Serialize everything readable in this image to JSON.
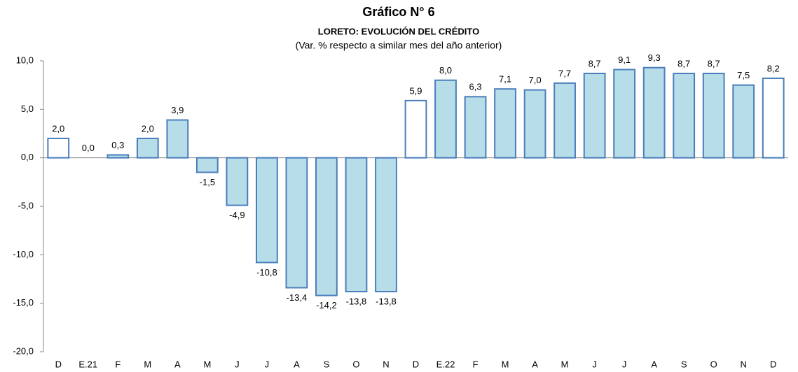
{
  "chart_data": {
    "type": "bar",
    "title": "Gráfico N° 6",
    "subtitle": "LORETO: EVOLUCIÓN DEL CRÉDITO",
    "note": "(Var. % respecto a similar mes del año anterior)",
    "categories": [
      "D",
      "E.21",
      "F",
      "M",
      "A",
      "M",
      "J",
      "J",
      "A",
      "S",
      "O",
      "N",
      "D",
      "E.22",
      "F",
      "M",
      "A",
      "M",
      "J",
      "J",
      "A",
      "S",
      "O",
      "N",
      "D"
    ],
    "values": [
      2.0,
      0.0,
      0.3,
      2.0,
      3.9,
      -1.5,
      -4.9,
      -10.8,
      -13.4,
      -14.2,
      -13.8,
      -13.8,
      5.9,
      8.0,
      6.3,
      7.1,
      7.0,
      7.7,
      8.7,
      9.1,
      9.3,
      8.7,
      8.7,
      7.5,
      8.2
    ],
    "value_labels": [
      "2,0",
      "0,0",
      "0,3",
      "2,0",
      "3,9",
      "-1,5",
      "-4,9",
      "-10,8",
      "-13,4",
      "-14,2",
      "-13,8",
      "-13,8",
      "5,9",
      "8,0",
      "6,3",
      "7,1",
      "7,0",
      "7,7",
      "8,7",
      "9,1",
      "9,3",
      "8,7",
      "8,7",
      "7,5",
      "8,2"
    ],
    "colors": [
      "#ffffff",
      "#b7dde8",
      "#b7dde8",
      "#b7dde8",
      "#b7dde8",
      "#b7dde8",
      "#b7dde8",
      "#b7dde8",
      "#b7dde8",
      "#b7dde8",
      "#b7dde8",
      "#b7dde8",
      "#ffffff",
      "#b7dde8",
      "#b7dde8",
      "#b7dde8",
      "#b7dde8",
      "#b7dde8",
      "#b7dde8",
      "#b7dde8",
      "#b7dde8",
      "#b7dde8",
      "#b7dde8",
      "#b7dde8",
      "#ffffff"
    ],
    "edge_color": "#4a7ebb",
    "ylim": [
      -20,
      10
    ],
    "yticks": [
      {
        "value": -20,
        "label": "-20,0"
      },
      {
        "value": -15,
        "label": "-15,0"
      },
      {
        "value": -10,
        "label": "-10,0"
      },
      {
        "value": -5,
        "label": "-5,0"
      },
      {
        "value": 0,
        "label": "0,0"
      },
      {
        "value": 5,
        "label": "5,0"
      },
      {
        "value": 10,
        "label": "10,0"
      }
    ],
    "grid": false
  }
}
